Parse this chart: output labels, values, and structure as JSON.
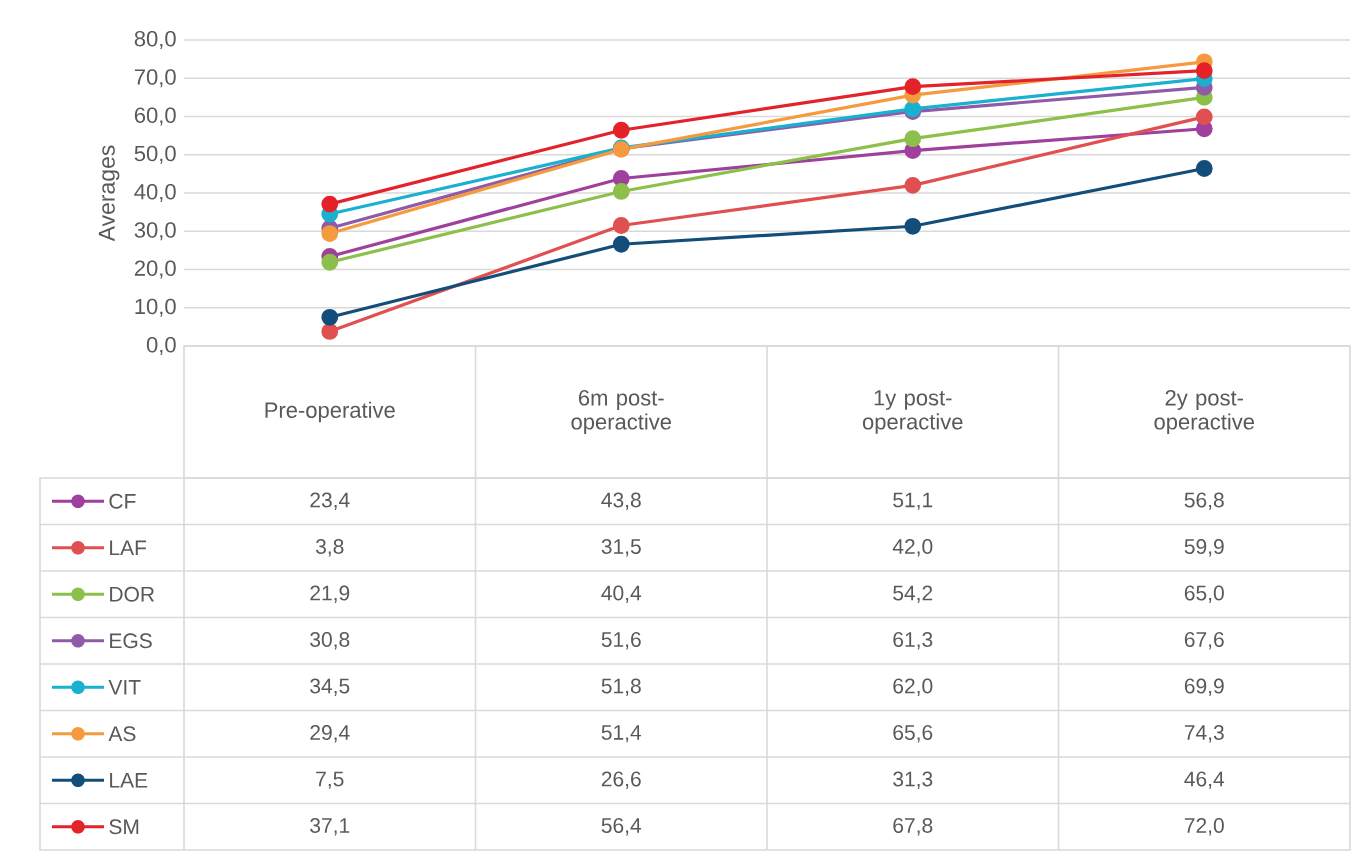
{
  "chart_data": {
    "type": "line",
    "ylabel": "Averages",
    "categories": [
      "Pre-operative",
      "6m post-operactive",
      "1y post-operactive",
      "2y post-operactive"
    ],
    "ylim": [
      0,
      80
    ],
    "yticks": [
      {
        "value": 0,
        "label": "0,0"
      },
      {
        "value": 10,
        "label": "10,0"
      },
      {
        "value": 20,
        "label": "20,0"
      },
      {
        "value": 30,
        "label": "30,0"
      },
      {
        "value": 40,
        "label": "40,0"
      },
      {
        "value": 50,
        "label": "50,0"
      },
      {
        "value": 60,
        "label": "60,0"
      },
      {
        "value": 70,
        "label": "70,0"
      },
      {
        "value": 80,
        "label": "80,0"
      }
    ],
    "grid": "y",
    "legend": "bottom",
    "marker": "circle",
    "line_style": "solid",
    "series": [
      {
        "name": "CF",
        "color": "#a0409d",
        "values": [
          23.4,
          43.8,
          51.1,
          56.8
        ],
        "value_labels": [
          "23,4",
          "43,8",
          "51,1",
          "56,8"
        ]
      },
      {
        "name": "LAF",
        "color": "#e05050",
        "values": [
          3.8,
          31.5,
          42.0,
          59.9
        ],
        "value_labels": [
          "3,8",
          "31,5",
          "42,0",
          "59,9"
        ]
      },
      {
        "name": "DOR",
        "color": "#8cc04a",
        "values": [
          21.9,
          40.4,
          54.2,
          65.0
        ],
        "value_labels": [
          "21,9",
          "40,4",
          "54,2",
          "65,0"
        ]
      },
      {
        "name": "EGS",
        "color": "#8f5ba8",
        "values": [
          30.8,
          51.6,
          61.3,
          67.6
        ],
        "value_labels": [
          "30,8",
          "51,6",
          "61,3",
          "67,6"
        ]
      },
      {
        "name": "VIT",
        "color": "#1ab0cf",
        "values": [
          34.5,
          51.8,
          62.0,
          69.9
        ],
        "value_labels": [
          "34,5",
          "51,8",
          "62,0",
          "69,9"
        ]
      },
      {
        "name": "AS",
        "color": "#f59a3f",
        "values": [
          29.4,
          51.4,
          65.6,
          74.3
        ],
        "value_labels": [
          "29,4",
          "51,4",
          "65,6",
          "74,3"
        ]
      },
      {
        "name": "LAE",
        "color": "#134e7a",
        "values": [
          7.5,
          26.6,
          31.3,
          46.4
        ],
        "value_labels": [
          "7,5",
          "26,6",
          "31,3",
          "46,4"
        ]
      },
      {
        "name": "SM",
        "color": "#e3222a",
        "values": [
          37.1,
          56.4,
          67.8,
          72.0
        ],
        "value_labels": [
          "37,1",
          "56,4",
          "67,8",
          "72,0"
        ]
      }
    ]
  }
}
